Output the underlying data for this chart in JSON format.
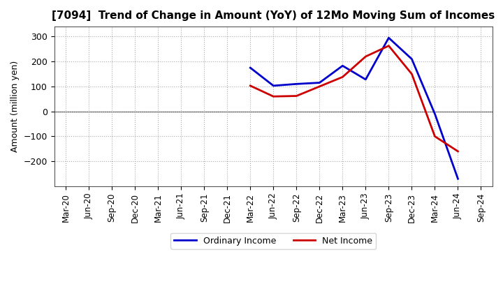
{
  "title": "[7094]  Trend of Change in Amount (YoY) of 12Mo Moving Sum of Incomes",
  "ylabel": "Amount (million yen)",
  "ylim": [
    -300,
    340
  ],
  "yticks": [
    -200,
    -100,
    0,
    100,
    200,
    300
  ],
  "background_color": "#ffffff",
  "grid_color": "#aaaaaa",
  "x_labels": [
    "Mar-20",
    "Jun-20",
    "Sep-20",
    "Dec-20",
    "Mar-21",
    "Jun-21",
    "Sep-21",
    "Dec-21",
    "Mar-22",
    "Jun-22",
    "Sep-22",
    "Dec-22",
    "Mar-23",
    "Jun-23",
    "Sep-23",
    "Dec-23",
    "Mar-24",
    "Jun-24",
    "Sep-24"
  ],
  "ordinary_income": {
    "x_indices": [
      8,
      9,
      10,
      11,
      12,
      13,
      14,
      15,
      16,
      17
    ],
    "y_values": [
      175,
      103,
      110,
      115,
      183,
      128,
      295,
      210,
      -10,
      -270
    ]
  },
  "net_income": {
    "x_indices": [
      8,
      9,
      10,
      11,
      12,
      13,
      14,
      15,
      16,
      17
    ],
    "y_values": [
      103,
      60,
      62,
      100,
      138,
      220,
      263,
      150,
      -100,
      -160
    ]
  },
  "ordinary_income_color": "#0000cc",
  "net_income_color": "#cc0000",
  "line_width": 2.0,
  "legend_entries": [
    "Ordinary Income",
    "Net Income"
  ]
}
